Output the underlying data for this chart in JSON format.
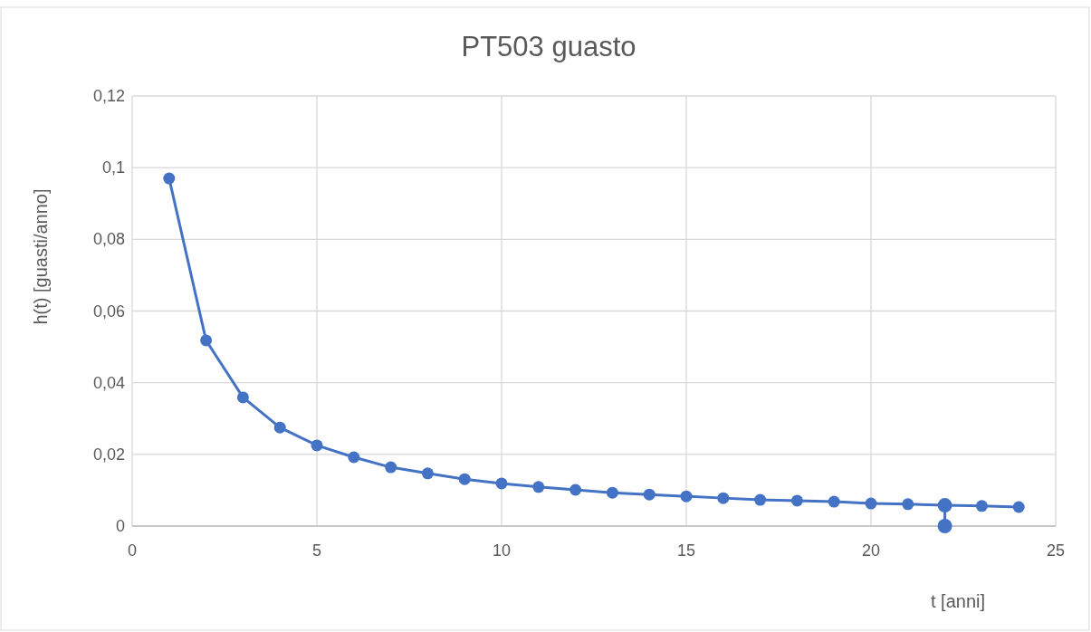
{
  "chart_data": {
    "type": "line",
    "title": "PT503 guasto",
    "xlabel": "t [anni]",
    "ylabel": "h(t) [guasti/anno]",
    "xlim": [
      0,
      25
    ],
    "xticks": [
      0,
      5,
      10,
      15,
      20,
      25
    ],
    "ylim": [
      0,
      0.12
    ],
    "yticks": [
      0,
      {
        "value": 0.02,
        "label": "0,02"
      },
      {
        "value": 0.04,
        "label": "0,04"
      },
      {
        "value": 0.06,
        "label": "0,06"
      },
      {
        "value": 0.08,
        "label": "0,08"
      },
      {
        "value": 0.1,
        "label": "0,1"
      },
      {
        "value": 0.12,
        "label": "0,12"
      }
    ],
    "grid": true,
    "marker": "circle",
    "line_style": "solid",
    "series": [
      {
        "color": "#4472c4",
        "x": [
          1,
          2,
          3,
          4,
          5,
          6,
          7,
          8,
          9,
          10,
          11,
          12,
          13,
          14,
          15,
          16,
          17,
          18,
          19,
          20,
          21,
          22,
          23,
          24
        ],
        "values": [
          0.097,
          0.0518,
          0.0359,
          0.0275,
          0.0225,
          0.0192,
          0.0164,
          0.0147,
          0.0131,
          0.0119,
          0.0109,
          0.0101,
          0.0093,
          0.0088,
          0.0083,
          0.0078,
          0.0073,
          0.0071,
          0.0068,
          0.0063,
          0.0061,
          0.0058,
          0.0056,
          0.0053
        ]
      },
      {
        "color": "#4472c4",
        "x": [
          22,
          22
        ],
        "values": [
          0.0058,
          0
        ]
      }
    ]
  }
}
